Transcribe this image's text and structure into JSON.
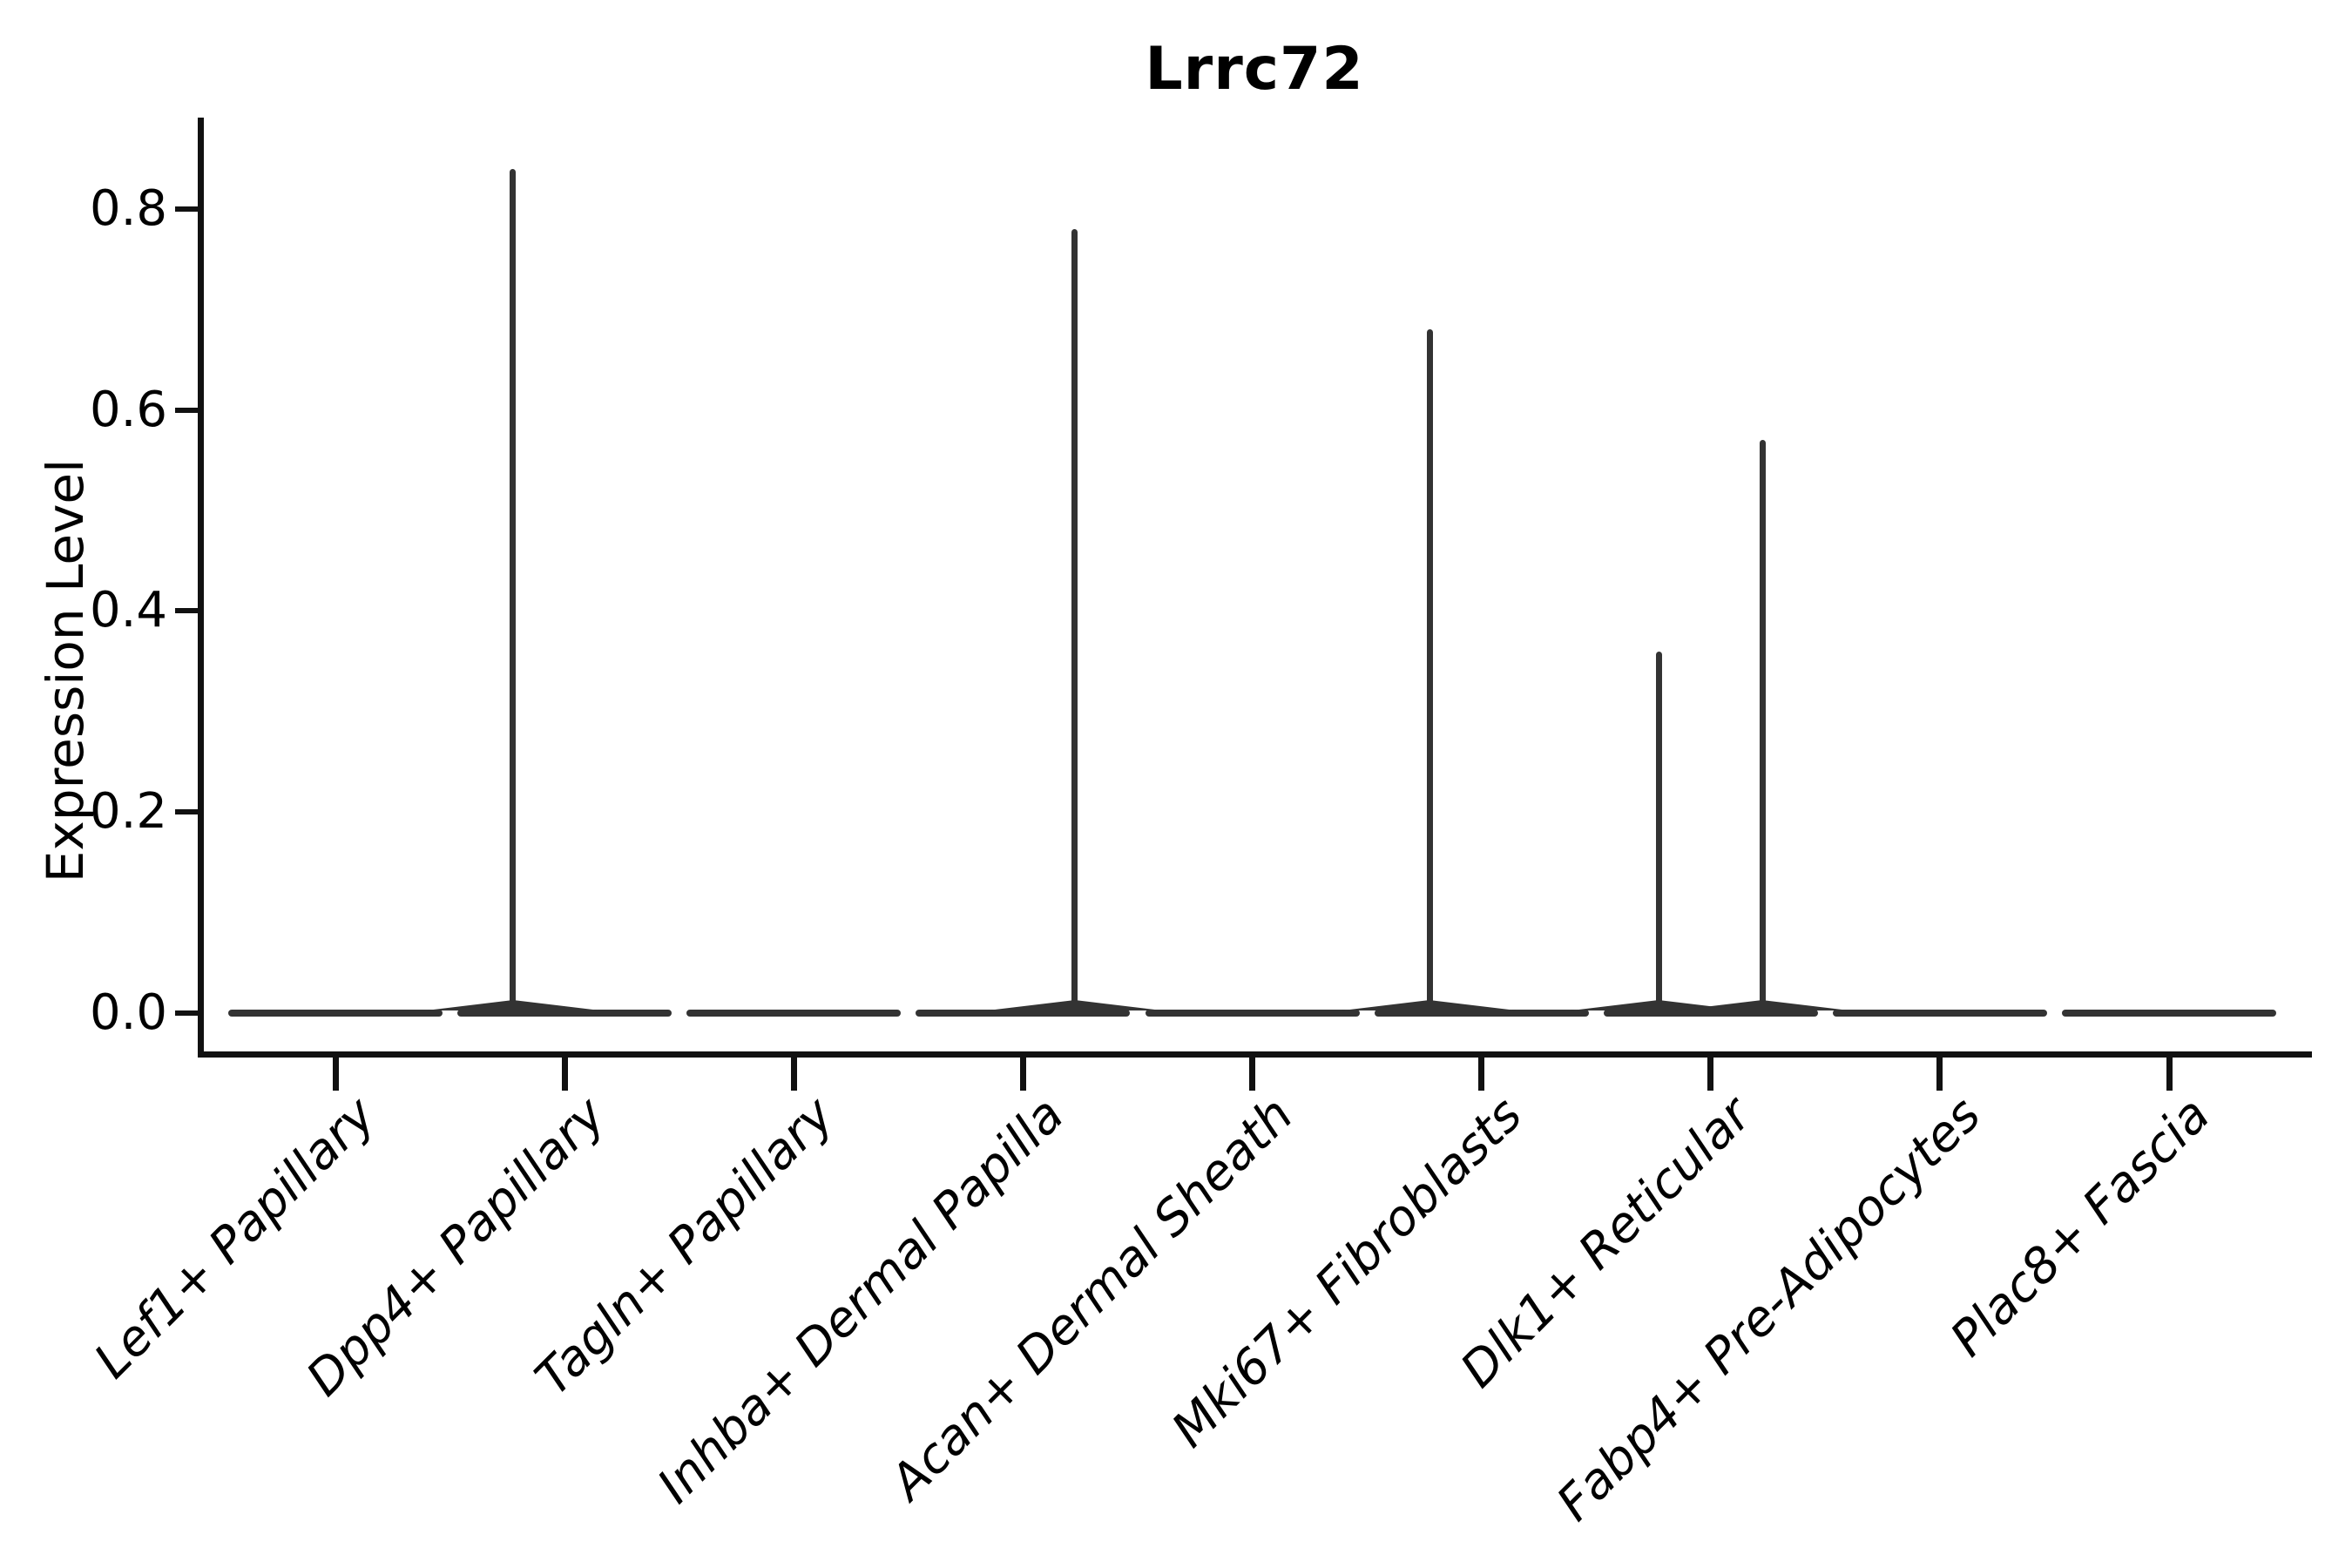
{
  "chart_data": {
    "type": "violin",
    "title": "Lrrc72",
    "ylabel": "Expression Level",
    "xlabel": "",
    "yticks": [
      0.0,
      0.2,
      0.4,
      0.6,
      0.8
    ],
    "ylim": [
      -0.04,
      0.89
    ],
    "grid": false,
    "legend": "none",
    "categories": [
      "Lef1+ Papillary",
      "Dpp4+ Papillary",
      "Tagln+ Papillary",
      "Inhba+ Dermal Papilla",
      "Acan+ Dermal Sheath",
      "Mki67+ Fibroblasts",
      "Dlk1+ Reticular",
      "Fabp4+ Pre-Adipocytes",
      "Plac8+ Fascia"
    ],
    "violins": [
      {
        "category": "Lef1+ Papillary",
        "baseline_value": 0.0,
        "spikes": []
      },
      {
        "category": "Dpp4+ Papillary",
        "baseline_value": 0.0,
        "spikes": [
          {
            "group_position": "left",
            "max_expression": 0.84
          }
        ]
      },
      {
        "category": "Tagln+ Papillary",
        "baseline_value": 0.0,
        "spikes": []
      },
      {
        "category": "Inhba+ Dermal Papilla",
        "baseline_value": 0.0,
        "spikes": [
          {
            "group_position": "right",
            "max_expression": 0.78
          }
        ]
      },
      {
        "category": "Acan+ Dermal Sheath",
        "baseline_value": 0.0,
        "spikes": []
      },
      {
        "category": "Mki67+ Fibroblasts",
        "baseline_value": 0.0,
        "spikes": [
          {
            "group_position": "left",
            "max_expression": 0.68
          }
        ]
      },
      {
        "category": "Dlk1+ Reticular",
        "baseline_value": 0.0,
        "spikes": [
          {
            "group_position": "left",
            "max_expression": 0.36
          },
          {
            "group_position": "right",
            "max_expression": 0.57
          }
        ]
      },
      {
        "category": "Fabp4+ Pre-Adipocytes",
        "baseline_value": 0.0,
        "spikes": []
      },
      {
        "category": "Plac8+ Fascia",
        "baseline_value": 0.0,
        "spikes": []
      }
    ],
    "colors": {
      "violin": "#333333",
      "axis": "#111111",
      "text": "#000000",
      "background": "#ffffff"
    }
  }
}
